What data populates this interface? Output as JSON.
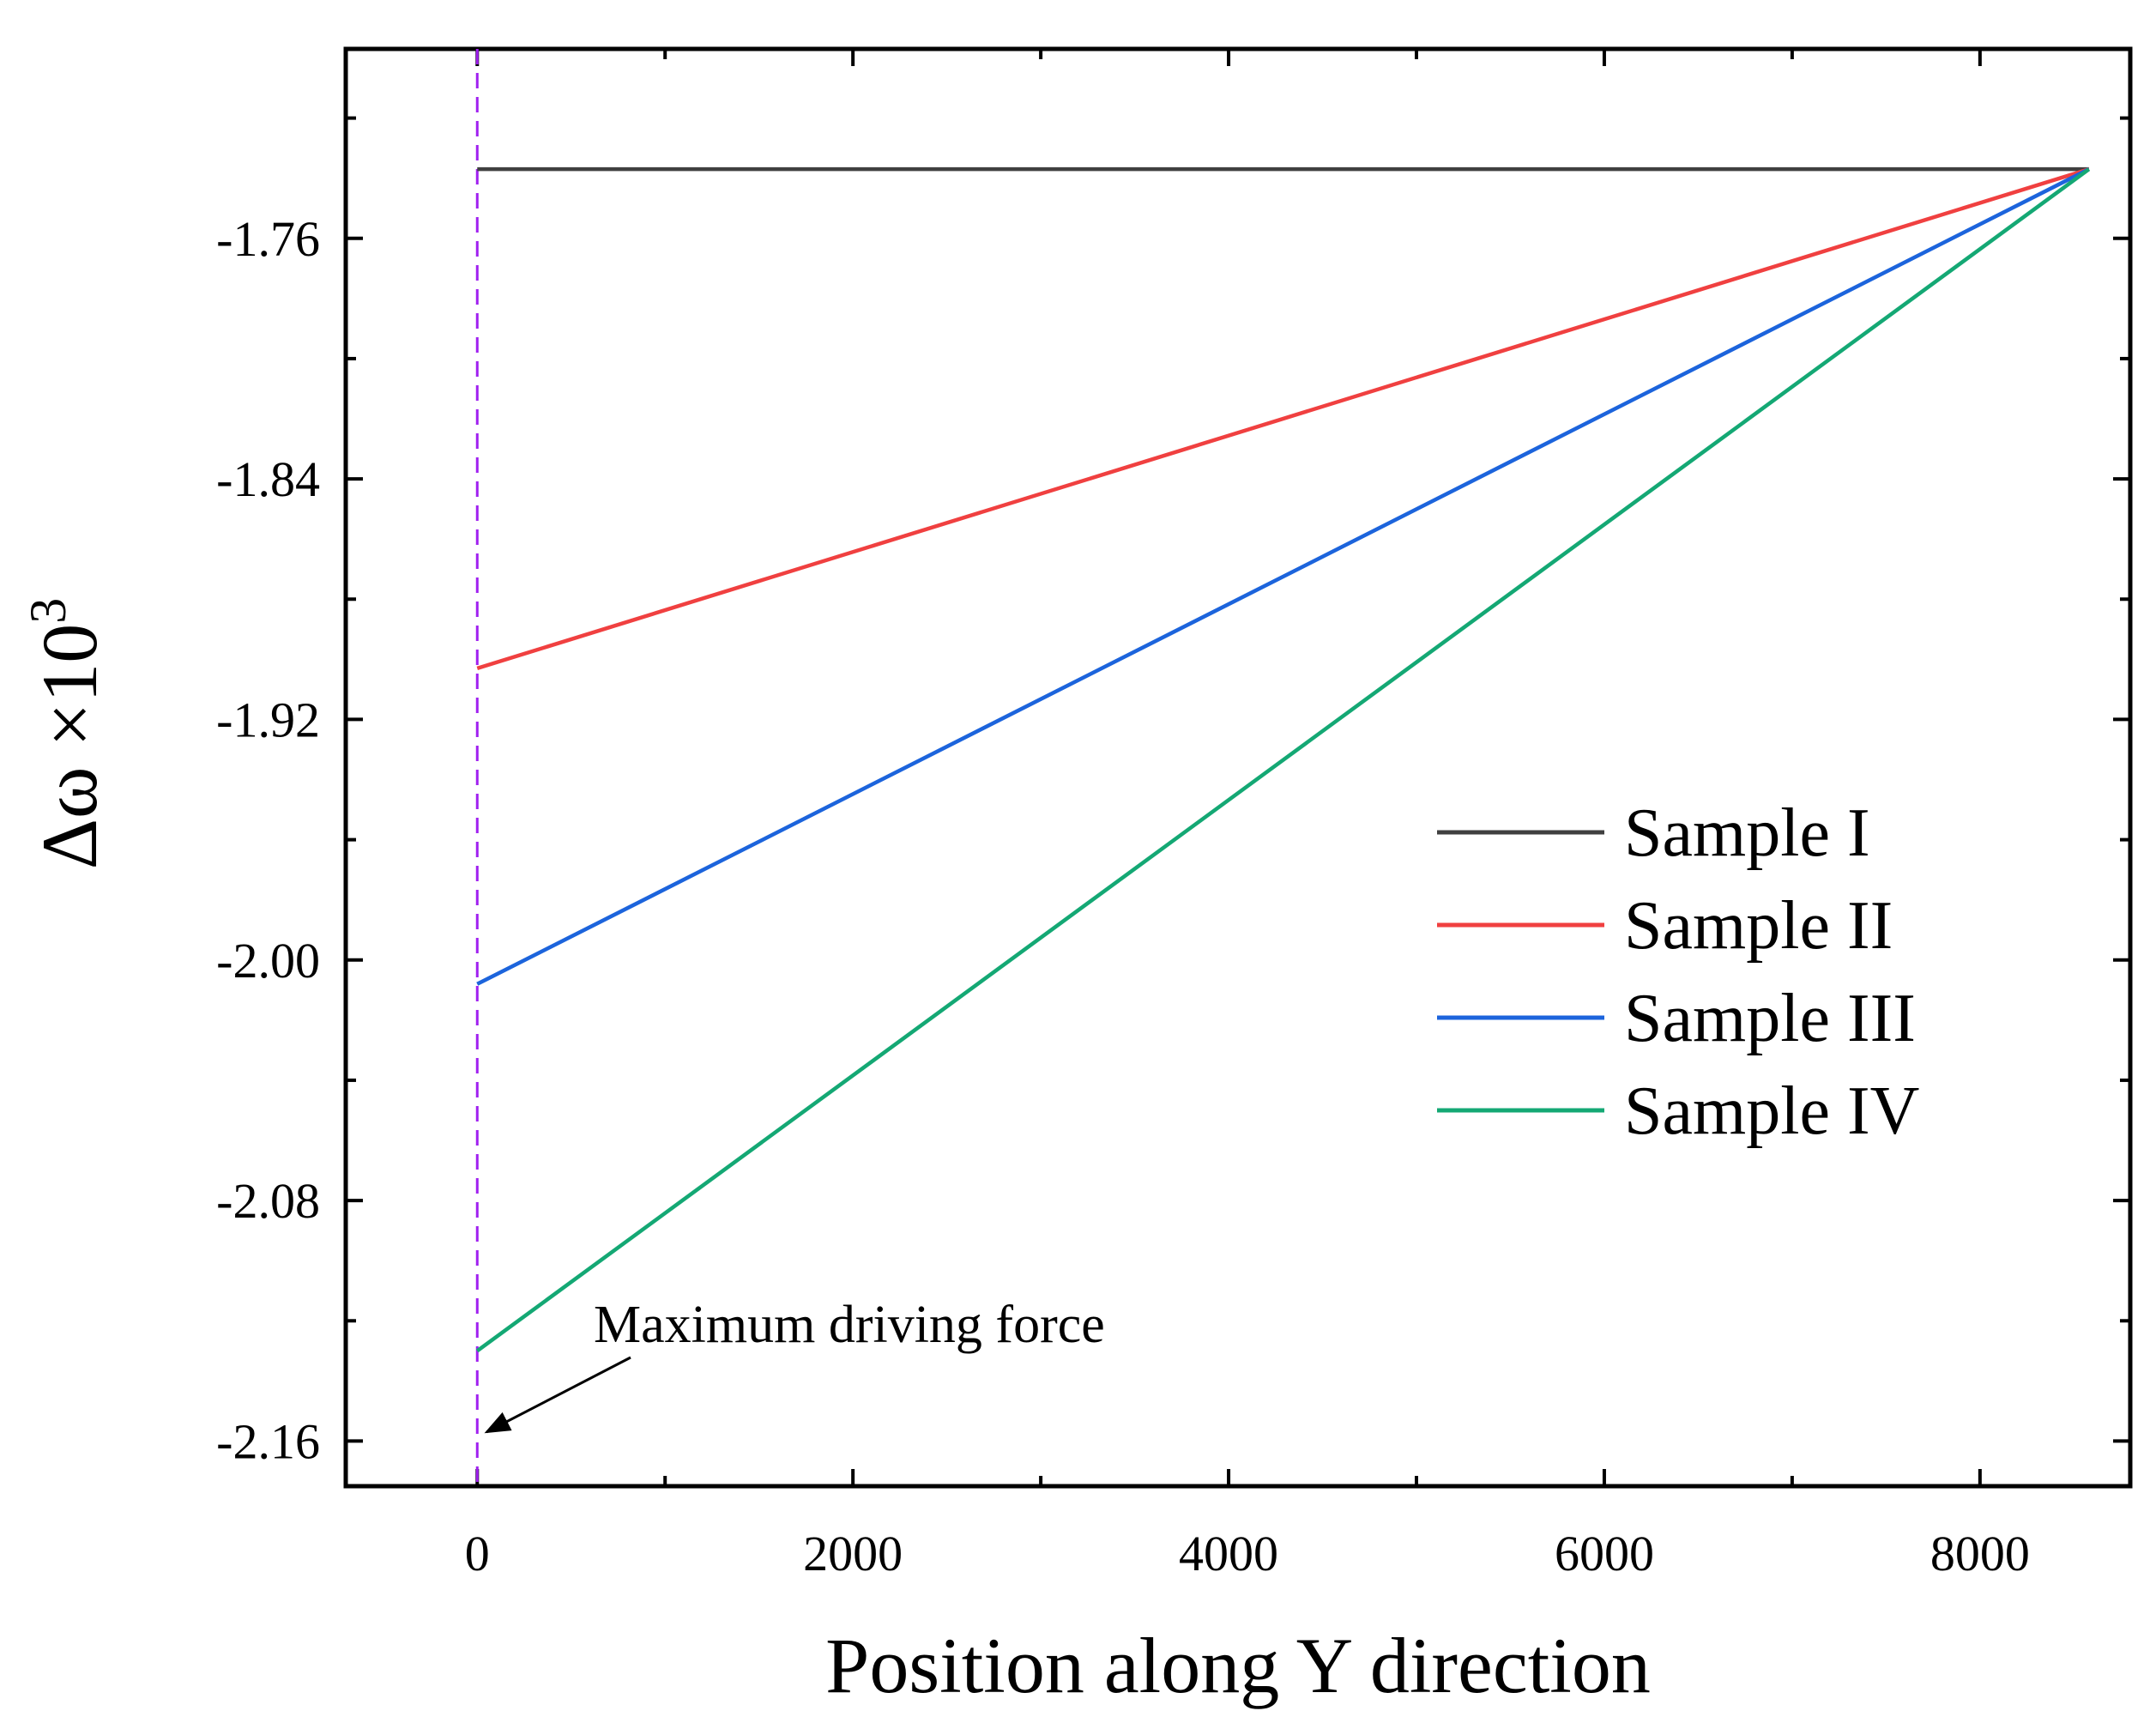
{
  "chart_data": {
    "type": "line",
    "xlabel": "Position along Y direction",
    "ylabel_main": "Δω ×10",
    "ylabel_sup": "3",
    "xlim": [
      -700,
      8800
    ],
    "ylim": [
      -2.175,
      -1.697
    ],
    "x_ticks": [
      0,
      2000,
      4000,
      6000,
      8000
    ],
    "x_tick_labels": [
      "0",
      "2000",
      "4000",
      "6000",
      "8000"
    ],
    "x_minor_ticks": [
      1000,
      3000,
      5000,
      7000
    ],
    "y_ticks": [
      -1.76,
      -1.84,
      -1.92,
      -2.0,
      -2.08,
      -2.16
    ],
    "y_tick_labels": [
      "-1.76",
      "-1.84",
      "-1.92",
      "-2.00",
      "-2.08",
      "-2.16"
    ],
    "y_minor_ticks": [
      -1.72,
      -1.8,
      -1.88,
      -1.96,
      -2.04,
      -2.12
    ],
    "grid": false,
    "legend_position": "center-right",
    "series": [
      {
        "name": "Sample I",
        "color": "#404040",
        "x": [
          0,
          8580
        ],
        "y": [
          -1.737,
          -1.737
        ]
      },
      {
        "name": "Sample II",
        "color": "#f04040",
        "x": [
          0,
          8580
        ],
        "y": [
          -1.903,
          -1.737
        ]
      },
      {
        "name": "Sample III",
        "color": "#1c64dc",
        "x": [
          0,
          8580
        ],
        "y": [
          -2.008,
          -1.737
        ]
      },
      {
        "name": "Sample IV",
        "color": "#14a874",
        "x": [
          0,
          8580
        ],
        "y": [
          -2.13,
          -1.737
        ]
      }
    ],
    "vline": {
      "x": 0,
      "color": "#a020f0"
    },
    "annotation": {
      "text": "Maximum driving force",
      "text_x": 620,
      "text_y": -2.127,
      "arrow_to_x": 50,
      "arrow_to_y": -2.157
    }
  }
}
